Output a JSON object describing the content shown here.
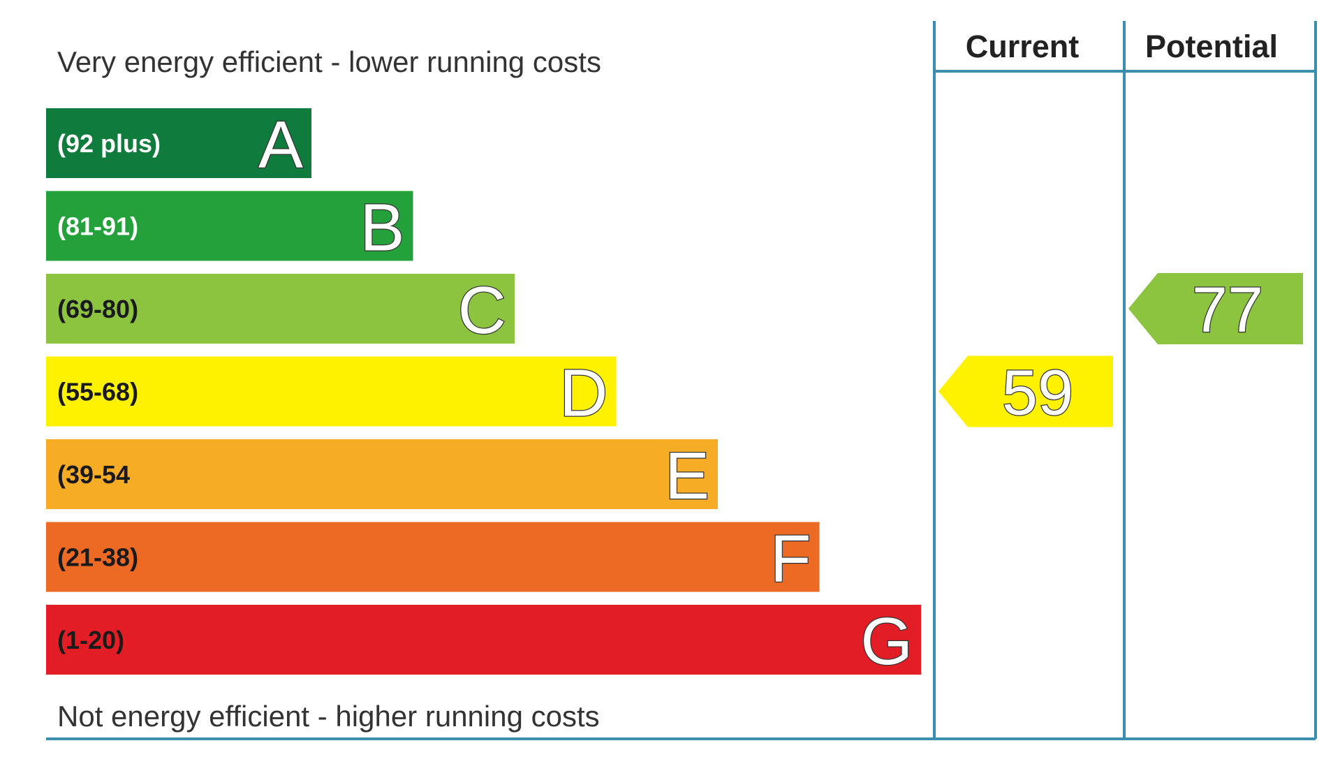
{
  "chart_data": {
    "type": "bar",
    "top_caption": "Very energy efficient - lower running costs",
    "bottom_caption": "Not energy efficient - higher running costs",
    "column_headers": [
      "Current",
      "Potential"
    ],
    "bands": [
      {
        "letter": "A",
        "range": "(92 plus)",
        "min": 92,
        "max": 100,
        "color": "#0f7b3c",
        "text_color": "#ffffff"
      },
      {
        "letter": "B",
        "range": "(81-91)",
        "min": 81,
        "max": 91,
        "color": "#24a13a",
        "text_color": "#ffffff"
      },
      {
        "letter": "C",
        "range": "(69-80)",
        "min": 69,
        "max": 80,
        "color": "#8cc43f",
        "text_color": "#1a1a1a"
      },
      {
        "letter": "D",
        "range": "(55-68)",
        "min": 55,
        "max": 68,
        "color": "#fff200",
        "text_color": "#1a1a1a"
      },
      {
        "letter": "E",
        "range": "(39-54",
        "min": 39,
        "max": 54,
        "color": "#f7ac26",
        "text_color": "#1a1a1a"
      },
      {
        "letter": "F",
        "range": "(21-38)",
        "min": 21,
        "max": 38,
        "color": "#ec6a24",
        "text_color": "#1a1a1a"
      },
      {
        "letter": "G",
        "range": "(1-20)",
        "min": 1,
        "max": 20,
        "color": "#e31d25",
        "text_color": "#1a1a1a"
      }
    ],
    "ratings": {
      "current": {
        "value": 59,
        "band": "D",
        "color": "#fff200"
      },
      "potential": {
        "value": 77,
        "band": "C",
        "color": "#8cc43f"
      }
    },
    "frame_color": "#3a8fae"
  }
}
